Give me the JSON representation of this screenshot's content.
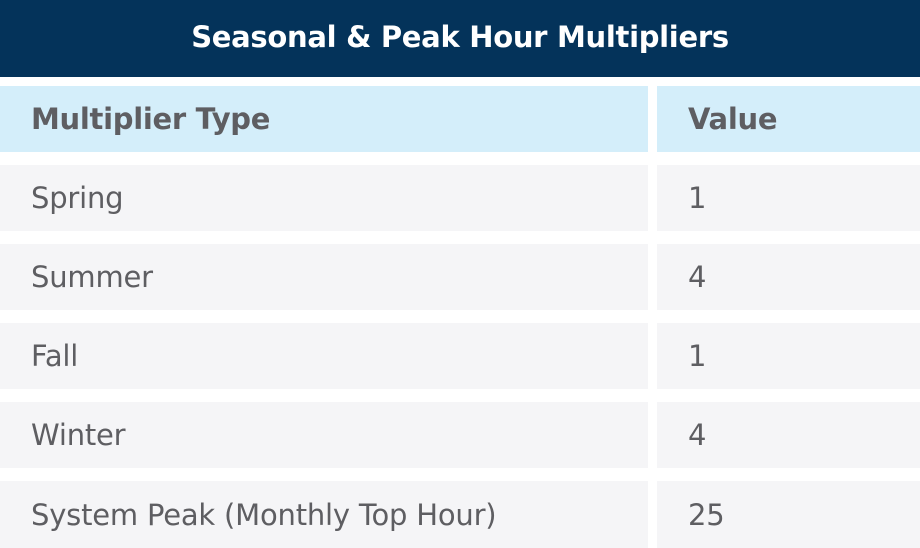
{
  "title": "Seasonal & Peak Hour Multipliers",
  "columns": [
    "Multiplier Type",
    "Value"
  ],
  "rows": [
    {
      "type": "Spring",
      "value": "1"
    },
    {
      "type": "Summer",
      "value": "4"
    },
    {
      "type": "Fall",
      "value": "1"
    },
    {
      "type": "Winter",
      "value": "4"
    },
    {
      "type": "System Peak (Monthly Top Hour)",
      "value": "25"
    }
  ],
  "colors": {
    "title_bg": "#04335a",
    "header_bg": "#d4eefa",
    "row_bg": "#f5f5f7",
    "text": "#5e5e62"
  }
}
